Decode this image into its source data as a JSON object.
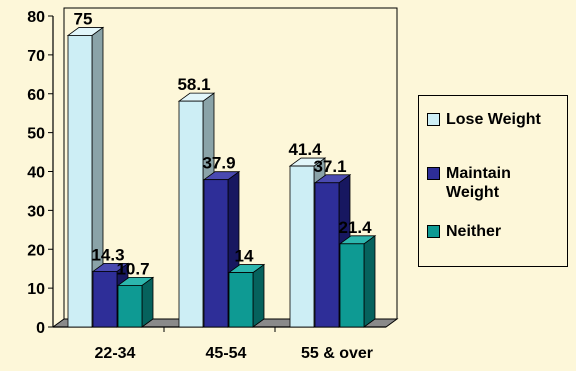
{
  "chart_data": {
    "type": "bar",
    "style": "3d-clustered",
    "categories": [
      "22-34",
      "45-54",
      "55 & over"
    ],
    "series": [
      {
        "name": "Lose Weight",
        "values": [
          75,
          58.1,
          41.4
        ],
        "labels": [
          "75",
          "58.1",
          "41.4"
        ],
        "color": "#cdeef5",
        "side_color": "#8aa3a8",
        "top_color": "#e2f6fa"
      },
      {
        "name": "Maintain Weight",
        "values": [
          14.3,
          37.9,
          37.1
        ],
        "labels": [
          "14.3",
          "37.9",
          "37.1"
        ],
        "color": "#2e2e98",
        "side_color": "#171760",
        "top_color": "#4a4ab0"
      },
      {
        "name": "Neither",
        "values": [
          10.7,
          14,
          21.4
        ],
        "labels": [
          "10.7",
          "14",
          "21.4"
        ],
        "color": "#0e9a93",
        "side_color": "#06625d",
        "top_color": "#2cb6ae"
      }
    ],
    "ylim": [
      0,
      80
    ],
    "yticks": [
      "0",
      "10",
      "20",
      "30",
      "40",
      "50",
      "60",
      "70",
      "80"
    ],
    "grid": false,
    "legend_position": "right"
  }
}
